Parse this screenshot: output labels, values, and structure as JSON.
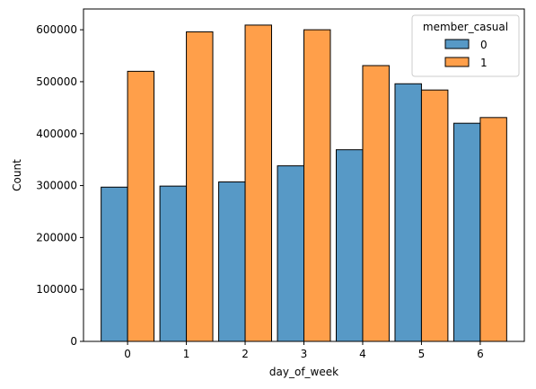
{
  "chart_data": {
    "type": "bar",
    "xlabel": "day_of_week",
    "ylabel": "Count",
    "categories": [
      "0",
      "1",
      "2",
      "3",
      "4",
      "5",
      "6"
    ],
    "yticks": [
      0,
      100000,
      200000,
      300000,
      400000,
      500000,
      600000
    ],
    "ytick_labels": [
      "0",
      "100000",
      "200000",
      "300000",
      "400000",
      "500000",
      "600000"
    ],
    "ylim": [
      0,
      640000
    ],
    "grid": false,
    "legend": {
      "title": "member_casual",
      "placement": "top-right"
    },
    "series": [
      {
        "name": "0",
        "color": "#5799c6",
        "values": [
          297000,
          299000,
          307000,
          338000,
          369000,
          496000,
          420000
        ]
      },
      {
        "name": "1",
        "color": "#ff9f4a",
        "values": [
          520000,
          596000,
          609000,
          600000,
          531000,
          484000,
          431000
        ]
      }
    ]
  }
}
